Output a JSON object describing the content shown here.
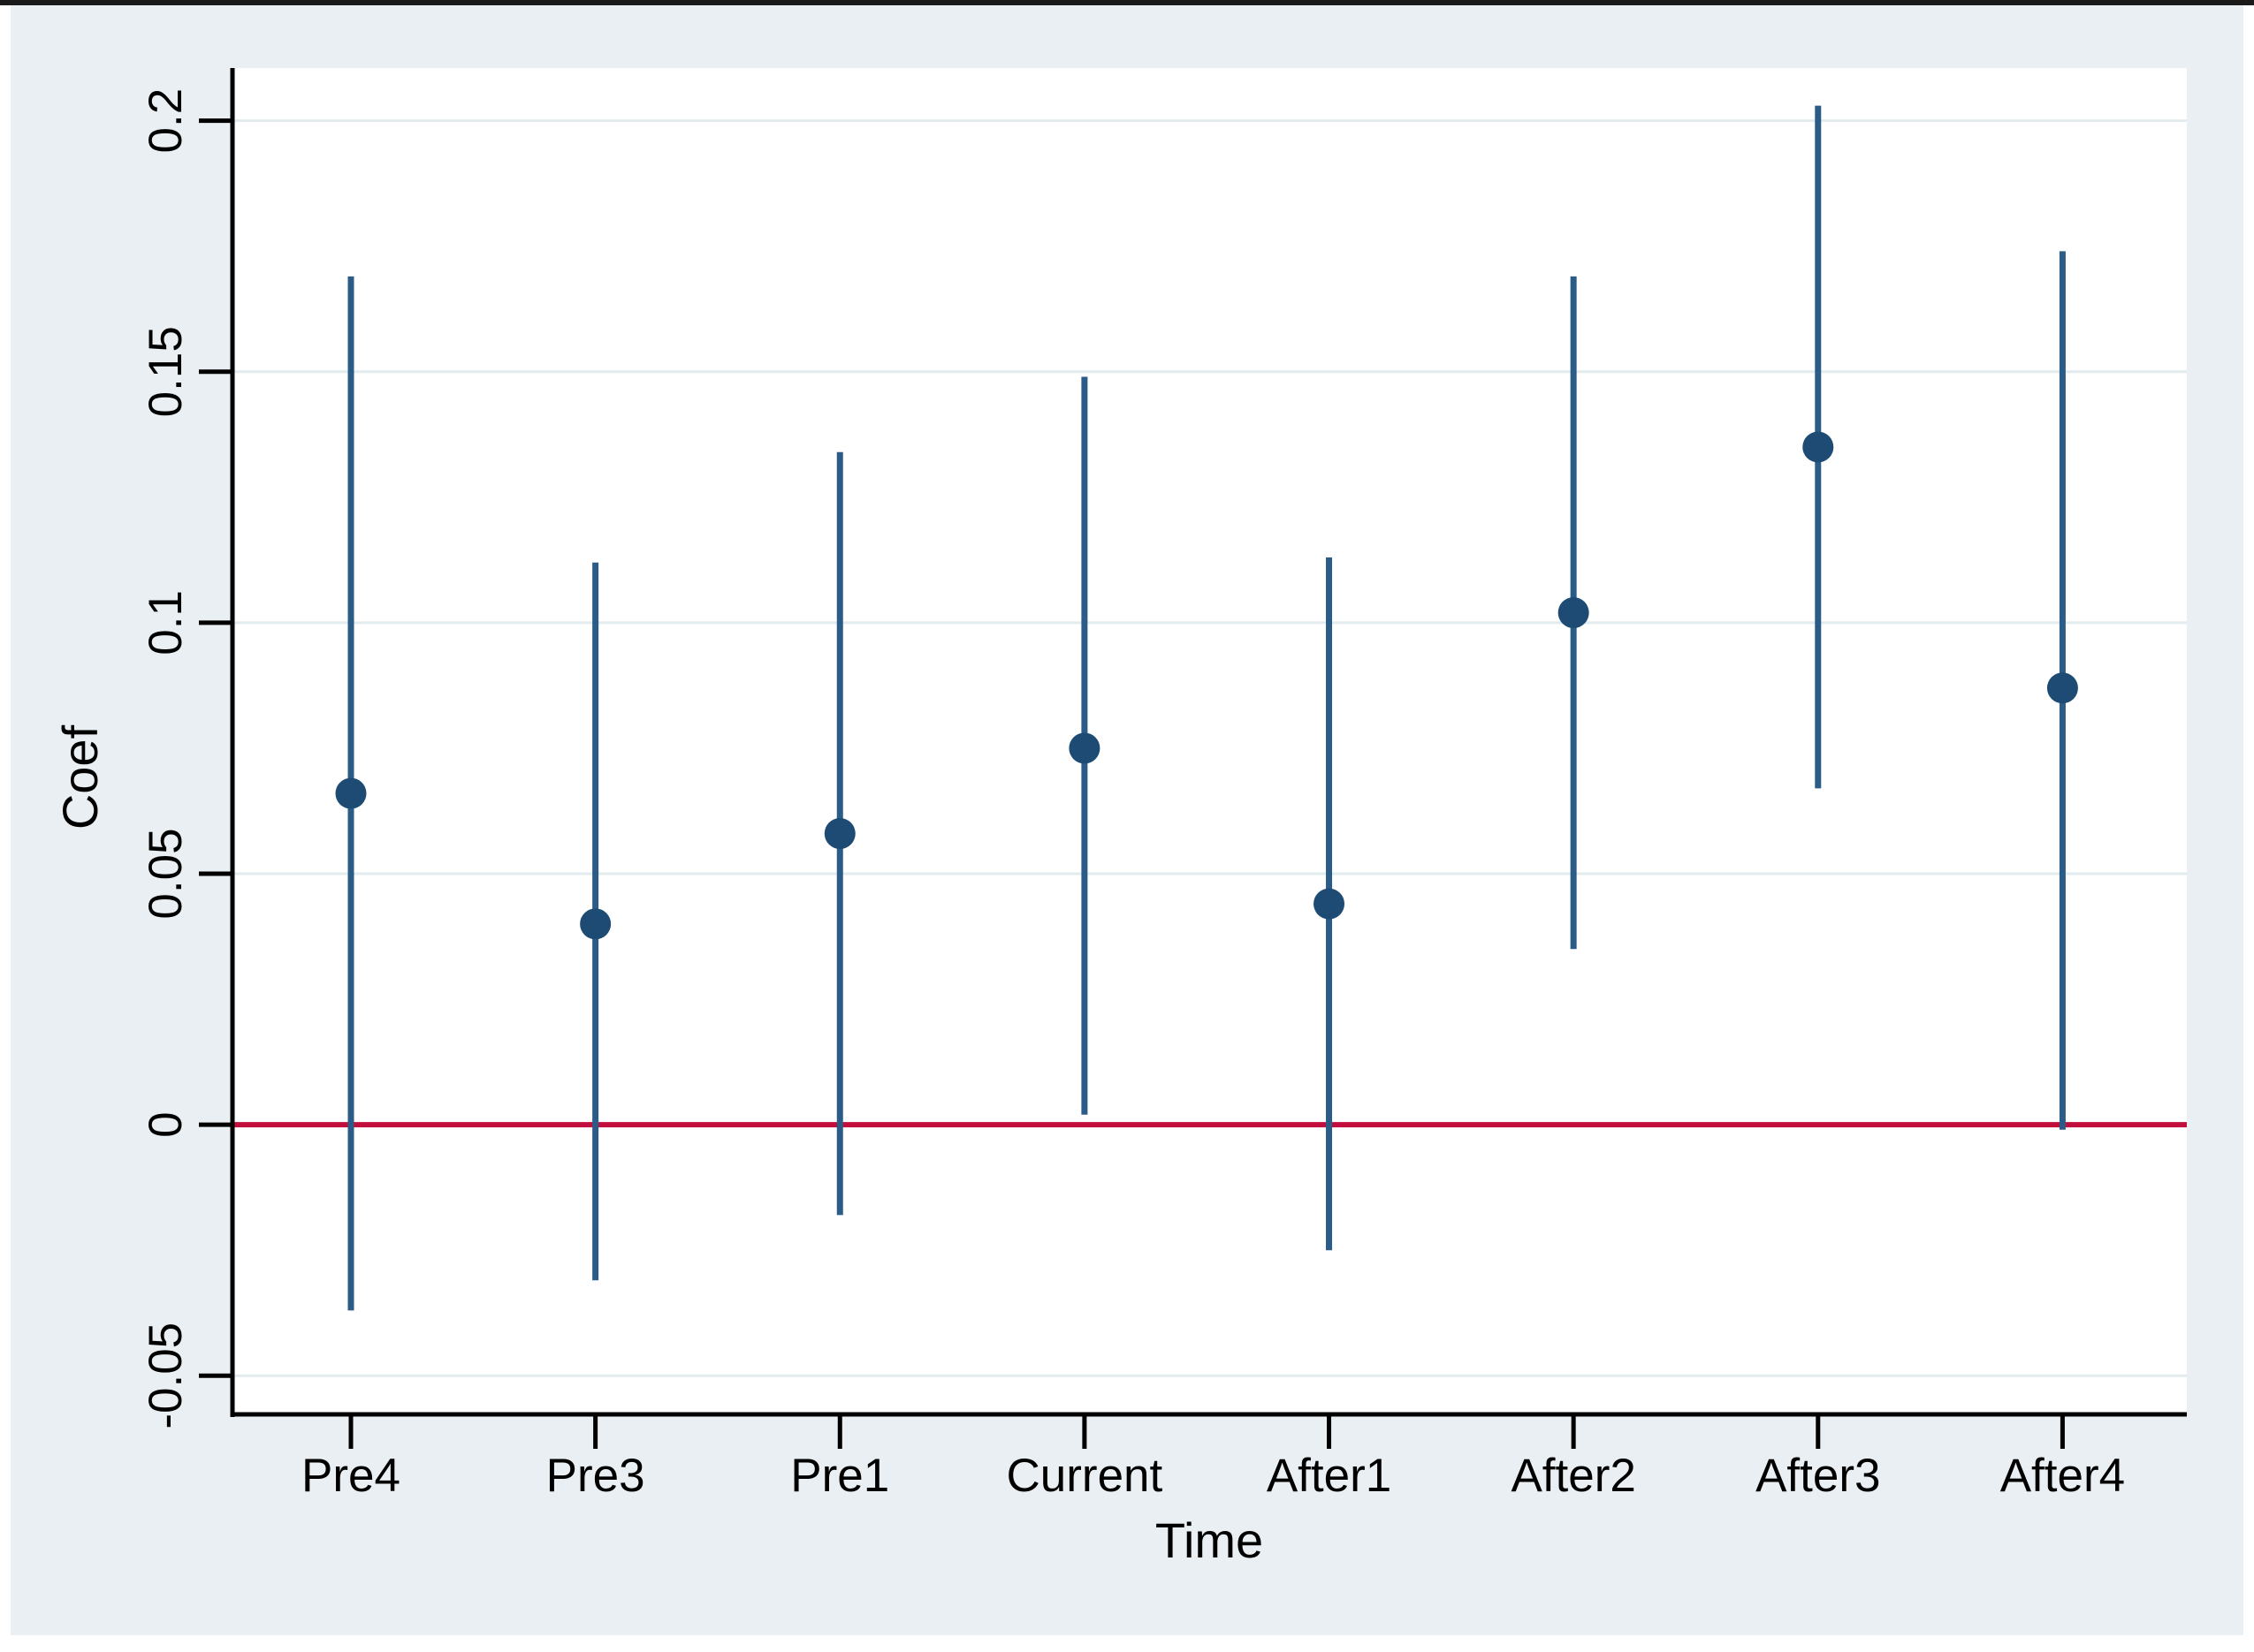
{
  "chart_data": {
    "type": "scatter",
    "subtype": "coefficient-errorbar-plot",
    "title": "",
    "xlabel": "Time",
    "ylabel": "Coef",
    "categories": [
      "Pre4",
      "Pre3",
      "Pre1",
      "Current",
      "After1",
      "After2",
      "After3",
      "After4"
    ],
    "series": [
      {
        "name": "Coef",
        "values": [
          0.066,
          0.04,
          0.058,
          0.075,
          0.044,
          0.102,
          0.135,
          0.087
        ]
      }
    ],
    "ci_low": [
      -0.037,
      -0.031,
      -0.018,
      0.002,
      -0.025,
      0.035,
      0.067,
      -0.001
    ],
    "ci_high": [
      0.169,
      0.112,
      0.134,
      0.149,
      0.113,
      0.169,
      0.203,
      0.174
    ],
    "yticks": [
      {
        "value": 0.2,
        "label": "0.2"
      },
      {
        "value": 0.15,
        "label": "0.15"
      },
      {
        "value": 0.1,
        "label": "0.1"
      },
      {
        "value": 0.05,
        "label": "0.05"
      },
      {
        "value": 0,
        "label": "0"
      },
      {
        "value": -0.05,
        "label": "-0.05"
      }
    ],
    "ylim": [
      -0.0577,
      0.2105
    ],
    "grid": true,
    "legend": "none",
    "reference_line_y": 0
  },
  "colors": {
    "marker": "#1e4b73",
    "ci_line": "#2b5c87",
    "reference_line": "#c10e3c",
    "figure_background": "#e9eff2",
    "plot_background": "#ffffff",
    "gridline": "#e2ecef",
    "axis": "#000000",
    "top_rule": "#1a1a1a"
  }
}
